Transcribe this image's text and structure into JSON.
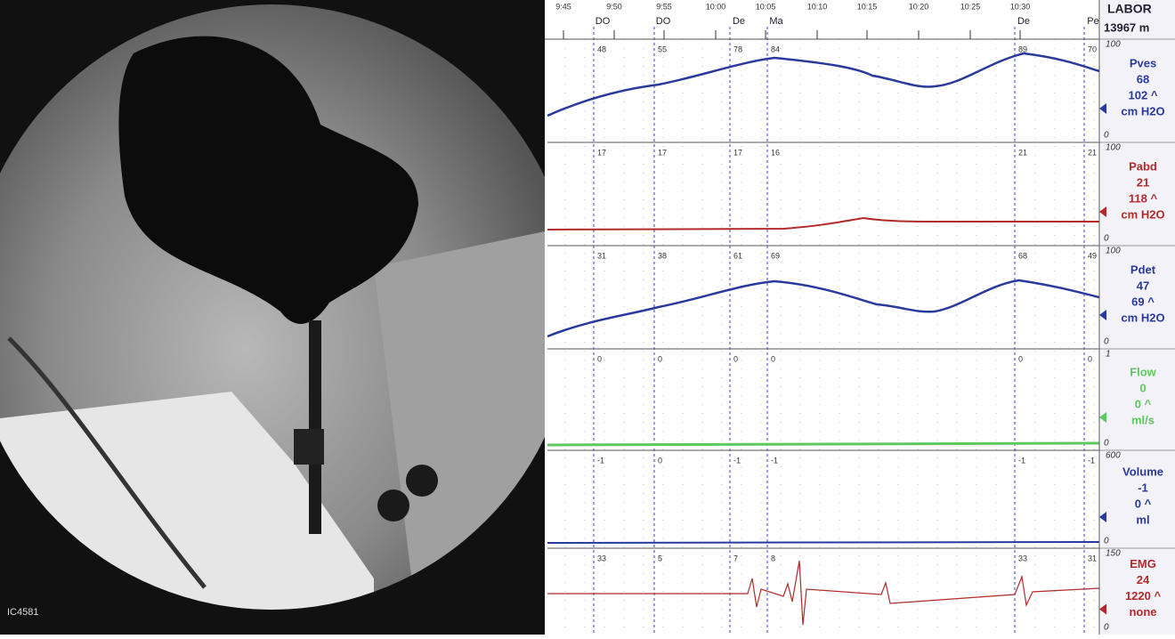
{
  "header": {
    "system": "LABOR",
    "id": "13967 m"
  },
  "times": [
    "9:45",
    "9:50",
    "9:55",
    "10:00",
    "10:05",
    "10:10",
    "10:15",
    "10:20",
    "10:25",
    "10:30"
  ],
  "events": [
    "DO",
    "DO",
    "De",
    "Ma",
    "De",
    "Pe"
  ],
  "image_label": "IC4581",
  "channels": [
    {
      "name": "Pves",
      "value": "68",
      "max": "102 ^",
      "unit": "cm H2O",
      "top": "100",
      "bottom": "0",
      "color": "#2a3a9c",
      "markers": [
        "48",
        "55",
        "78",
        "84",
        "89",
        "70"
      ]
    },
    {
      "name": "Pabd",
      "value": "21",
      "max": "118 ^",
      "unit": "cm H2O",
      "top": "100",
      "bottom": "0",
      "color": "#b22a2a",
      "markers": [
        "17",
        "17",
        "17",
        "16",
        "21",
        "21"
      ]
    },
    {
      "name": "Pdet",
      "value": "47",
      "max": "69 ^",
      "unit": "cm H2O",
      "top": "100",
      "bottom": "0",
      "color": "#2a3a9c",
      "markers": [
        "31",
        "38",
        "61",
        "69",
        "68",
        "49"
      ]
    },
    {
      "name": "Flow",
      "value": "0",
      "max": "0 ^",
      "unit": "ml/s",
      "top": "1",
      "bottom": "0",
      "color": "#5fc85f",
      "markers": [
        "0",
        "0",
        "0",
        "0",
        "0",
        "0"
      ]
    },
    {
      "name": "Volume",
      "value": "-1",
      "max": "0 ^",
      "unit": "ml",
      "top": "600",
      "bottom": "0",
      "color": "#2a3a9c",
      "markers": [
        "-1",
        "0",
        "-1",
        "-1",
        "-1",
        "-1"
      ]
    },
    {
      "name": "EMG",
      "value": "24",
      "max": "1220 ^",
      "unit": "none",
      "top": "150",
      "bottom": "0",
      "color": "#b22a2a",
      "markers": [
        "33",
        "5",
        "7",
        "8",
        "33",
        "31"
      ]
    }
  ]
}
